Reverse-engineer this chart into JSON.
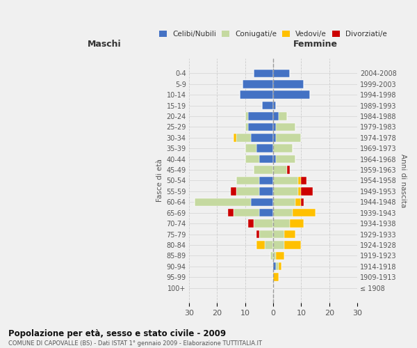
{
  "age_groups": [
    "0-4",
    "5-9",
    "10-14",
    "15-19",
    "20-24",
    "25-29",
    "30-34",
    "35-39",
    "40-44",
    "45-49",
    "50-54",
    "55-59",
    "60-64",
    "65-69",
    "70-74",
    "75-79",
    "80-84",
    "85-89",
    "90-94",
    "95-99",
    "100+"
  ],
  "birth_years": [
    "2004-2008",
    "1999-2003",
    "1994-1998",
    "1989-1993",
    "1984-1988",
    "1979-1983",
    "1974-1978",
    "1969-1973",
    "1964-1968",
    "1959-1963",
    "1954-1958",
    "1949-1953",
    "1944-1948",
    "1939-1943",
    "1934-1938",
    "1929-1933",
    "1924-1928",
    "1919-1923",
    "1914-1918",
    "1909-1913",
    "≤ 1908"
  ],
  "male": {
    "celibi": [
      7,
      11,
      12,
      4,
      9,
      9,
      8,
      6,
      5,
      0,
      5,
      5,
      8,
      5,
      0,
      0,
      0,
      0,
      0,
      0,
      0
    ],
    "coniugati": [
      0,
      0,
      0,
      0,
      1,
      1,
      5,
      4,
      5,
      7,
      8,
      8,
      20,
      9,
      7,
      5,
      3,
      1,
      0,
      0,
      0
    ],
    "vedovi": [
      0,
      0,
      0,
      0,
      0,
      0,
      1,
      0,
      0,
      0,
      0,
      0,
      0,
      0,
      0,
      0,
      3,
      0,
      0,
      0,
      0
    ],
    "divorziati": [
      0,
      0,
      0,
      0,
      0,
      0,
      0,
      0,
      0,
      0,
      0,
      2,
      0,
      2,
      2,
      1,
      0,
      0,
      0,
      0,
      0
    ]
  },
  "female": {
    "nubili": [
      6,
      11,
      13,
      1,
      2,
      1,
      1,
      0,
      1,
      0,
      0,
      0,
      0,
      0,
      0,
      0,
      0,
      0,
      1,
      0,
      0
    ],
    "coniugate": [
      0,
      0,
      0,
      0,
      3,
      7,
      9,
      7,
      7,
      5,
      9,
      9,
      8,
      7,
      6,
      4,
      4,
      1,
      1,
      0,
      0
    ],
    "vedove": [
      0,
      0,
      0,
      0,
      0,
      0,
      0,
      0,
      0,
      0,
      1,
      1,
      2,
      8,
      5,
      4,
      6,
      3,
      1,
      2,
      0
    ],
    "divorziate": [
      0,
      0,
      0,
      0,
      0,
      0,
      0,
      0,
      0,
      1,
      2,
      4,
      1,
      0,
      0,
      0,
      0,
      0,
      0,
      0,
      0
    ]
  },
  "colors": {
    "celibi": "#4472c4",
    "coniugati": "#c5d9a0",
    "vedovi": "#ffc000",
    "divorziati": "#cc0000"
  },
  "xlim": 30,
  "title": "Popolazione per età, sesso e stato civile - 2009",
  "subtitle": "COMUNE DI CAPOVALLE (BS) - Dati ISTAT 1° gennaio 2009 - Elaborazione TUTTITALIA.IT",
  "ylabel_left": "Fasce di età",
  "ylabel_right": "Anni di nascita",
  "xlabel_male": "Maschi",
  "xlabel_female": "Femmine",
  "legend_labels": [
    "Celibi/Nubili",
    "Coniugati/e",
    "Vedovi/e",
    "Divorziati/e"
  ],
  "bg_color": "#f0f0f0",
  "bar_height": 0.75
}
